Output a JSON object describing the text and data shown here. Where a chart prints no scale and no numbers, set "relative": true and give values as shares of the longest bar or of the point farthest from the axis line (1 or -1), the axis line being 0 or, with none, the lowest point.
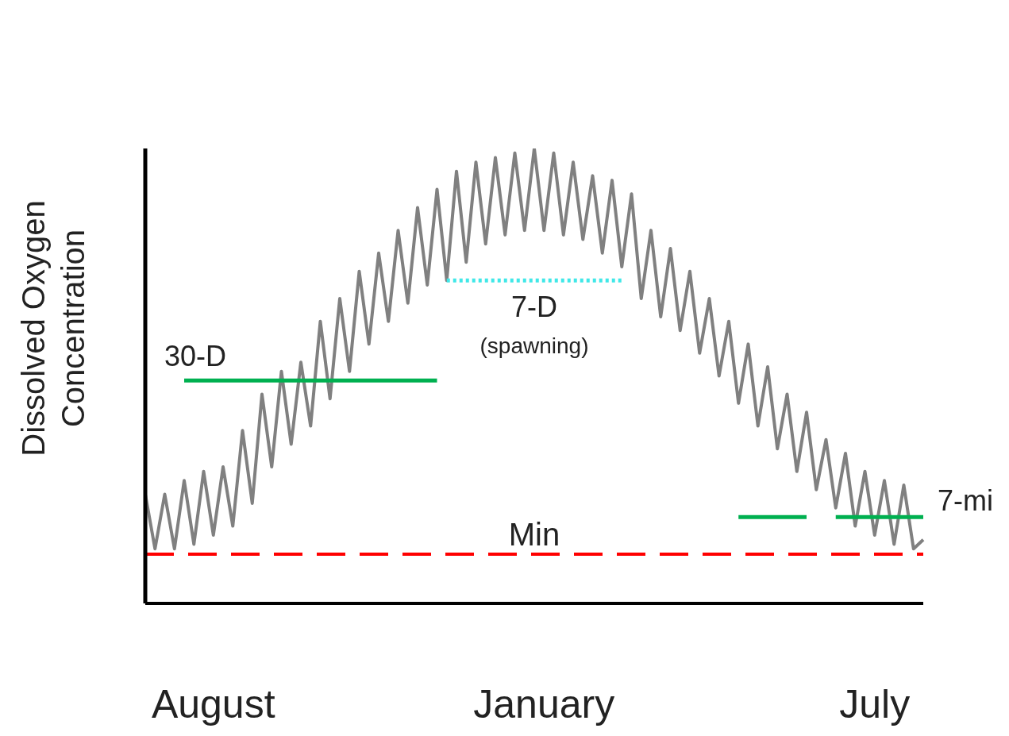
{
  "chart_data": {
    "type": "line",
    "relative": true,
    "ylabel": "Dissolved Oxygen Concentration",
    "marker": "none",
    "categories": [
      null,
      null,
      null,
      null,
      null,
      null,
      null,
      "August",
      null,
      null,
      null,
      null,
      null,
      null,
      null,
      null,
      null,
      null,
      null,
      null,
      null,
      null,
      null,
      null,
      null,
      null,
      null,
      null,
      null,
      null,
      null,
      null,
      null,
      null,
      null,
      null,
      null,
      null,
      null,
      null,
      null,
      "January",
      null,
      null,
      null,
      null,
      null,
      null,
      null,
      null,
      null,
      null,
      null,
      null,
      null,
      null,
      null,
      null,
      null,
      null,
      null,
      null,
      null,
      null,
      null,
      null,
      null,
      null,
      null,
      null,
      null,
      null,
      null,
      null,
      null,
      "July",
      null,
      null,
      null,
      null,
      null
    ],
    "series": [
      {
        "color": "#808080",
        "line_style": "solid",
        "values": [
          0.24,
          0.12,
          0.24,
          0.12,
          0.27,
          0.13,
          0.29,
          0.15,
          0.3,
          0.17,
          0.38,
          0.22,
          0.46,
          0.3,
          0.51,
          0.35,
          0.53,
          0.39,
          0.62,
          0.45,
          0.67,
          0.51,
          0.73,
          0.57,
          0.77,
          0.62,
          0.82,
          0.66,
          0.87,
          0.7,
          0.91,
          0.71,
          0.95,
          0.75,
          0.97,
          0.79,
          0.98,
          0.81,
          0.99,
          0.82,
          1.0,
          0.82,
          0.99,
          0.81,
          0.97,
          0.8,
          0.94,
          0.77,
          0.93,
          0.74,
          0.9,
          0.67,
          0.82,
          0.63,
          0.78,
          0.6,
          0.73,
          0.55,
          0.67,
          0.5,
          0.62,
          0.44,
          0.57,
          0.39,
          0.52,
          0.34,
          0.46,
          0.29,
          0.42,
          0.25,
          0.36,
          0.21,
          0.33,
          0.17,
          0.29,
          0.15,
          0.27,
          0.13,
          0.26,
          0.12,
          0.14
        ]
      },
      {
        "name": "30-D",
        "color": "#00b050",
        "line_style": "solid",
        "values": [
          null,
          null,
          null,
          null,
          0.49,
          0.49,
          0.49,
          0.49,
          0.49,
          0.49,
          0.49,
          0.49,
          0.49,
          0.49,
          0.49,
          0.49,
          0.49,
          0.49,
          0.49,
          0.49,
          0.49,
          0.49,
          0.49,
          0.49,
          0.49,
          0.49,
          0.49,
          0.49,
          0.49,
          0.49,
          0.49,
          null,
          null,
          null,
          null,
          null,
          null,
          null,
          null,
          null,
          null,
          null,
          null,
          null,
          null,
          null,
          null,
          null,
          null,
          null,
          null,
          null,
          null,
          null,
          null,
          null,
          null,
          null,
          null,
          null,
          null,
          null,
          null,
          null,
          null,
          null,
          null,
          null,
          null,
          null,
          null,
          null,
          null,
          null,
          null,
          null,
          null,
          null,
          null,
          null,
          null
        ]
      },
      {
        "name": "7-D",
        "color": "#40e8e8",
        "line_style": "dotted",
        "values": [
          null,
          null,
          null,
          null,
          null,
          null,
          null,
          null,
          null,
          null,
          null,
          null,
          null,
          null,
          null,
          null,
          null,
          null,
          null,
          null,
          null,
          null,
          null,
          null,
          null,
          null,
          null,
          null,
          null,
          null,
          null,
          0.71,
          0.71,
          0.71,
          0.71,
          0.71,
          0.71,
          0.71,
          0.71,
          0.71,
          0.71,
          0.71,
          0.71,
          0.71,
          0.71,
          0.71,
          0.71,
          0.71,
          0.71,
          0.71,
          null,
          null,
          null,
          null,
          null,
          null,
          null,
          null,
          null,
          null,
          null,
          null,
          null,
          null,
          null,
          null,
          null,
          null,
          null,
          null,
          null,
          null,
          null,
          null,
          null,
          null,
          null,
          null,
          null,
          null,
          null
        ]
      },
      {
        "name": "7-mi",
        "color": "#00b050",
        "line_style": "solid",
        "values": [
          null,
          null,
          null,
          null,
          null,
          null,
          null,
          null,
          null,
          null,
          null,
          null,
          null,
          null,
          null,
          null,
          null,
          null,
          null,
          null,
          null,
          null,
          null,
          null,
          null,
          null,
          null,
          null,
          null,
          null,
          null,
          null,
          null,
          null,
          null,
          null,
          null,
          null,
          null,
          null,
          null,
          null,
          null,
          null,
          null,
          null,
          null,
          null,
          null,
          null,
          null,
          null,
          null,
          null,
          null,
          null,
          null,
          null,
          null,
          null,
          null,
          0.19,
          0.19,
          0.19,
          0.19,
          0.19,
          0.19,
          0.19,
          0.19,
          null,
          null,
          0.19,
          0.19,
          0.19,
          0.19,
          0.19,
          0.19,
          0.19,
          0.19,
          0.19,
          0.19
        ]
      }
    ],
    "ref_lines": [
      {
        "axis": "y",
        "value": 0.108,
        "label": "Min",
        "color": "#ff0000",
        "line_style": "dashed"
      }
    ],
    "annotations": [
      "(spawning)"
    ]
  }
}
